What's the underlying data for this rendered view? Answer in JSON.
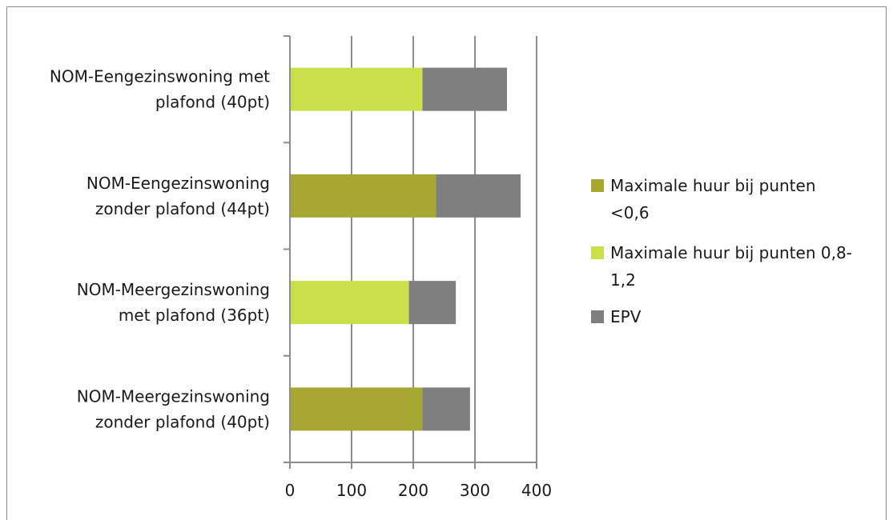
{
  "chart_data": {
    "type": "bar",
    "orientation": "horizontal",
    "stacked": true,
    "categories": [
      [
        "NOM-Eengezinswoning met",
        "plafond (40pt)"
      ],
      [
        "NOM-Eengezinswoning",
        "zonder plafond (44pt)"
      ],
      [
        "NOM-Meergezinswoning",
        "met plafond (36pt)"
      ],
      [
        "NOM-Meergezinswoning",
        "zonder plafond (40pt)"
      ]
    ],
    "series": [
      {
        "name": [
          "Maximale huur bij punten",
          "<0,6"
        ],
        "color": "#a6a832",
        "values": [
          0,
          237,
          0,
          215
        ]
      },
      {
        "name": [
          "Maximale huur bij punten 0,8-",
          "1,2"
        ],
        "color": "#c9e04a",
        "values": [
          215,
          0,
          193,
          0
        ]
      },
      {
        "name": [
          "EPV"
        ],
        "color": "#7f7f7f",
        "values": [
          137,
          137,
          76,
          77
        ]
      }
    ],
    "xlim": [
      0,
      400
    ],
    "xticks": [
      "0",
      "100",
      "200",
      "300",
      "400"
    ],
    "grid": true,
    "legend_position": "right"
  }
}
